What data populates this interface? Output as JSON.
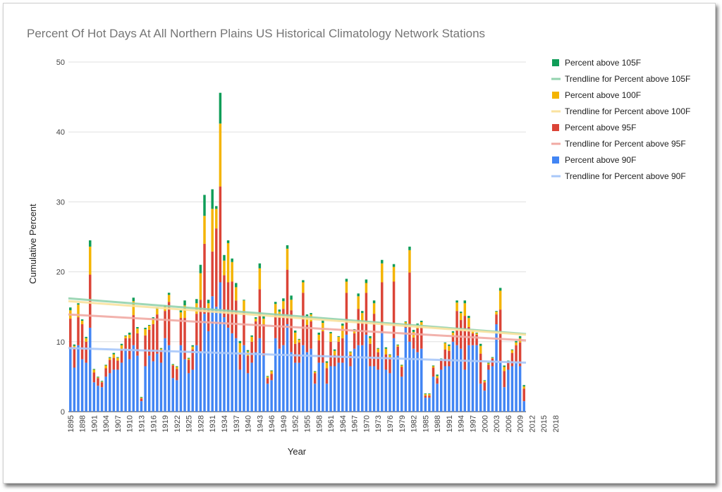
{
  "chart_data": {
    "type": "bar",
    "stacked": true,
    "title": "Percent Of Hot Days At All Northern Plains US Historical Climatology Network Stations",
    "xlabel": "Year",
    "ylabel": "Cumulative Percent",
    "ylim": [
      0,
      50
    ],
    "yticks": [
      0,
      10,
      20,
      30,
      40,
      50
    ],
    "grid": true,
    "legend_position": "right",
    "x_start": 1895,
    "x_tick_labels": [
      "1895",
      "1898",
      "1901",
      "1904",
      "1907",
      "1910",
      "1913",
      "1916",
      "1919",
      "1922",
      "1925",
      "1928",
      "1931",
      "1934",
      "1937",
      "1940",
      "1943",
      "1946",
      "1949",
      "1952",
      "1955",
      "1958",
      "1961",
      "1964",
      "1967",
      "1970",
      "1973",
      "1976",
      "1979",
      "1982",
      "1985",
      "1988",
      "1991",
      "1994",
      "1997",
      "2000",
      "2003",
      "2006",
      "2009",
      "2012",
      "2015",
      "2018"
    ],
    "series": [
      {
        "name": "Percent above 90F",
        "color": "#4285f4",
        "values": [
          9,
          6.3,
          9.5,
          7.5,
          7,
          12,
          4.2,
          3.7,
          3.5,
          5,
          5.5,
          6,
          6,
          7,
          9,
          7.5,
          9.5,
          8,
          1.5,
          6.5,
          8,
          7.2,
          8.3,
          7,
          10.5,
          9.5,
          4.8,
          4.5,
          9.5,
          7.5,
          5.5,
          6,
          9.5,
          8.5,
          14,
          11.5,
          16.5,
          15,
          18.5,
          13.5,
          12,
          11.2,
          10.5,
          6,
          9.5,
          5.5,
          7,
          8.5,
          10.5,
          8,
          4,
          4.5,
          10.5,
          9,
          9.5,
          12.5,
          8.5,
          7,
          7,
          9.5,
          8.5,
          9,
          4,
          7,
          7,
          4,
          6.5,
          6.5,
          7,
          7,
          11,
          6.5,
          9,
          9.5,
          9.5,
          11,
          6.5,
          6.5,
          6,
          11.5,
          6,
          5.5,
          10.5,
          8,
          5,
          12,
          10,
          9,
          8.5,
          9,
          2,
          2,
          5,
          4,
          6,
          6.5,
          6.5,
          10,
          9.5,
          9,
          6,
          9.5,
          9.5,
          9.5,
          4,
          3,
          6,
          6.5,
          12.5,
          7,
          3.5,
          6,
          6.5,
          7,
          6.5,
          1.5
        ]
      },
      {
        "name": "Percent above 95F",
        "color": "#db4437",
        "values": [
          4.3,
          2.7,
          4,
          5,
          3,
          7.6,
          1.4,
          1.1,
          0.7,
          1.2,
          1.9,
          1.7,
          1.3,
          1.9,
          1.5,
          3,
          4.3,
          3.2,
          0.4,
          4.4,
          3.7,
          5.3,
          5.6,
          1.8,
          3.9,
          6.2,
          1.8,
          1.6,
          3.9,
          5.9,
          1.9,
          2.9,
          4.5,
          7.5,
          10,
          3.3,
          6.4,
          11.2,
          13.7,
          6,
          6.5,
          7.4,
          5.4,
          2.3,
          4.9,
          2.5,
          3,
          4.4,
          7,
          4.5,
          0.8,
          0.9,
          3.5,
          4.5,
          5.2,
          7.8,
          6,
          2.7,
          2.9,
          7.5,
          3.9,
          3.9,
          1.5,
          3.2,
          4.5,
          2.2,
          3.5,
          1.6,
          3,
          3.5,
          6,
          1.6,
          2.2,
          5.2,
          3.5,
          6,
          3.2,
          7.5,
          2.5,
          7,
          2.2,
          2.2,
          8.1,
          1.3,
          1.4,
          0.6,
          9.9,
          1.6,
          3.4,
          3.1,
          0.3,
          0.3,
          1.3,
          0.8,
          1.3,
          2.4,
          2.2,
          0.8,
          4.9,
          4.1,
          7.7,
          2.6,
          1.7,
          1.5,
          4.3,
          1.2,
          0.7,
          1.1,
          1.4,
          7.6,
          2.3,
          1.1,
          1.9,
          2.5,
          3.4,
          1.8,
          0.2
        ]
      },
      {
        "name": "Percent above 100F",
        "color": "#f4b400",
        "values": [
          1.2,
          0.4,
          1.8,
          0.5,
          0.5,
          4,
          0.4,
          0.1,
          0.1,
          0.4,
          0.3,
          0.5,
          0.4,
          0.6,
          0.3,
          0.5,
          2,
          0.7,
          0.1,
          0.9,
          0.6,
          0.8,
          0.8,
          0.2,
          0.6,
          1,
          0.1,
          0.3,
          0.8,
          1.8,
          0.2,
          0.4,
          1.5,
          3.8,
          4,
          0.7,
          6.1,
          2.8,
          9,
          2.1,
          5.6,
          2.8,
          1.9,
          1.5,
          1.5,
          0.6,
          0.7,
          0.4,
          3,
          0.8,
          0.2,
          0.4,
          1.4,
          0.8,
          1.1,
          3,
          1.5,
          1.6,
          0.4,
          1.5,
          1.2,
          1,
          0.2,
          0.8,
          1.2,
          0.8,
          1.2,
          0.6,
          0.7,
          1.8,
          1.6,
          0.4,
          0.5,
          1.8,
          1.1,
          1.4,
          0.8,
          1.5,
          0.5,
          2.7,
          0.8,
          0.4,
          2.1,
          0.2,
          0.2,
          0.2,
          3.2,
          0.8,
          0.5,
          0.7,
          0.2,
          0.2,
          0.2,
          0.3,
          0.2,
          0.9,
          0.7,
          0.5,
          1.2,
          1,
          1.8,
          1.3,
          0.4,
          0.2,
          1.1,
          0.2,
          0.2,
          0.1,
          0.4,
          2.7,
          0.6,
          0.1,
          0.4,
          0.4,
          0.6,
          0.3,
          0.1
        ]
      },
      {
        "name": "Percent above 105F",
        "color": "#0f9d58",
        "values": [
          0.4,
          0.2,
          0.2,
          0.2,
          0.2,
          0.9,
          0.1,
          0.1,
          0.1,
          0.1,
          0.1,
          0.2,
          0.1,
          0.2,
          0.1,
          0.3,
          0.5,
          0.2,
          0.1,
          0.2,
          0.1,
          0.2,
          0.2,
          0.1,
          0.2,
          0.3,
          0.1,
          0.1,
          0.3,
          0.7,
          0.1,
          0.2,
          0.6,
          1.2,
          3,
          0.5,
          2.8,
          0.4,
          4.4,
          0.8,
          0.4,
          0.5,
          0.6,
          0.3,
          0.1,
          0.2,
          0.2,
          0.2,
          0.7,
          0.4,
          0.1,
          0.1,
          0.3,
          0.3,
          0.4,
          0.5,
          0.6,
          0.3,
          0.1,
          0.3,
          0.3,
          0.2,
          0.1,
          0.3,
          0.4,
          0.2,
          0.2,
          0.2,
          0.1,
          0.3,
          0.4,
          0.1,
          0.1,
          0.4,
          0.3,
          0.5,
          0.3,
          0.4,
          0.1,
          0.5,
          0.2,
          0.1,
          0.4,
          0.1,
          0.1,
          0.1,
          0.5,
          0.3,
          0.2,
          0.2,
          0.1,
          0.1,
          0.1,
          0.2,
          0.1,
          0.1,
          0.2,
          0.2,
          0.3,
          0.2,
          0.4,
          0.3,
          0.1,
          0.1,
          0.3,
          0.1,
          0.1,
          0.1,
          0.1,
          0.4,
          0.2,
          0.1,
          0.1,
          0.2,
          0.3,
          0.2,
          0.1
        ]
      }
    ],
    "trendlines": [
      {
        "name": "Trendline for Percent above 105F",
        "color": "#93d3ae",
        "start": 16.2,
        "end": 11.1
      },
      {
        "name": "Trendline for Percent above 100F",
        "color": "#fae29f",
        "start": 15.8,
        "end": 11
      },
      {
        "name": "Trendline for Percent above 95F",
        "color": "#f1aaa3",
        "start": 13.9,
        "end": 10.2
      },
      {
        "name": "Trendline for Percent above 90F",
        "color": "#a9c8f9",
        "start": 9.1,
        "end": 7
      }
    ],
    "legend": [
      {
        "label": "Percent above 105F",
        "kind": "box",
        "color": "#0f9d58"
      },
      {
        "label": "Trendline for Percent above 105F",
        "kind": "line",
        "color": "#93d3ae"
      },
      {
        "label": "Percent above 100F",
        "kind": "box",
        "color": "#f4b400"
      },
      {
        "label": "Trendline for Percent above 100F",
        "kind": "line",
        "color": "#fae29f"
      },
      {
        "label": "Percent above 95F",
        "kind": "box",
        "color": "#db4437"
      },
      {
        "label": "Trendline for Percent above 95F",
        "kind": "line",
        "color": "#f1aaa3"
      },
      {
        "label": "Percent above 90F",
        "kind": "box",
        "color": "#4285f4"
      },
      {
        "label": "Trendline for Percent above 90F",
        "kind": "line",
        "color": "#a9c8f9"
      }
    ]
  }
}
